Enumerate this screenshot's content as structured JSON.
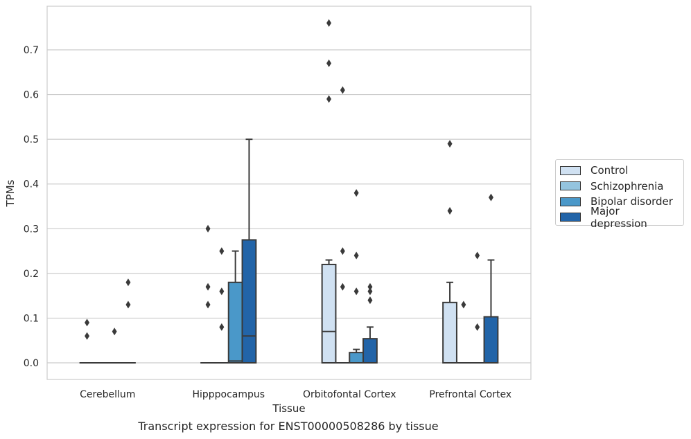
{
  "chart_data": {
    "type": "box",
    "xlabel": "Tissue",
    "ylabel": "TPMs",
    "ylim": [
      -0.037,
      0.8
    ],
    "yticks": [
      "0.0",
      "0.1",
      "0.2",
      "0.3",
      "0.4",
      "0.5",
      "0.6",
      "0.7"
    ],
    "grid": "horizontal",
    "legend_position": "right",
    "categories": [
      "Cerebellum",
      "Hipppocampus",
      "Orbitofontal Cortex",
      "Prefrontal Cortex"
    ],
    "series": [
      {
        "name": "Control",
        "color": "#d0e1f2",
        "boxes": [
          {
            "q1": 0,
            "median": 0,
            "q3": 0,
            "whisker_low": 0,
            "whisker_high": 0,
            "outliers": [
              0.09,
              0.06
            ]
          },
          {
            "q1": 0,
            "median": 0,
            "q3": 0,
            "whisker_low": 0,
            "whisker_high": 0,
            "outliers": [
              0.3,
              0.17,
              0.13
            ]
          },
          {
            "q1": 0,
            "median": 0.07,
            "q3": 0.22,
            "whisker_low": 0,
            "whisker_high": 0.23,
            "outliers": [
              0.76,
              0.67,
              0.59
            ]
          },
          {
            "q1": 0,
            "median": 0,
            "q3": 0.135,
            "whisker_low": 0,
            "whisker_high": 0.18,
            "outliers": [
              0.49,
              0.34
            ]
          }
        ]
      },
      {
        "name": "Schizophrenia",
        "color": "#94c4df",
        "boxes": [
          {
            "q1": 0,
            "median": 0,
            "q3": 0,
            "whisker_low": 0,
            "whisker_high": 0,
            "outliers": []
          },
          {
            "q1": 0,
            "median": 0,
            "q3": 0,
            "whisker_low": 0,
            "whisker_high": 0,
            "outliers": [
              0.25,
              0.16,
              0.08
            ]
          },
          {
            "q1": 0,
            "median": 0,
            "q3": 0,
            "whisker_low": 0,
            "whisker_high": 0,
            "outliers": [
              0.61,
              0.25,
              0.17
            ]
          },
          {
            "q1": 0,
            "median": 0,
            "q3": 0,
            "whisker_low": 0,
            "whisker_high": 0,
            "outliers": [
              0.13
            ]
          }
        ]
      },
      {
        "name": "Bipolar disorder",
        "color": "#4a98c9",
        "boxes": [
          {
            "q1": 0,
            "median": 0,
            "q3": 0,
            "whisker_low": 0,
            "whisker_high": 0,
            "outliers": [
              0.07
            ]
          },
          {
            "q1": 0,
            "median": 0.004,
            "q3": 0.18,
            "whisker_low": 0,
            "whisker_high": 0.25,
            "outliers": []
          },
          {
            "q1": 0,
            "median": 0,
            "q3": 0.023,
            "whisker_low": 0,
            "whisker_high": 0.03,
            "outliers": [
              0.38,
              0.24,
              0.16
            ]
          },
          {
            "q1": 0,
            "median": 0,
            "q3": 0,
            "whisker_low": 0,
            "whisker_high": 0,
            "outliers": [
              0.24,
              0.08
            ]
          }
        ]
      },
      {
        "name": "Major depression",
        "color": "#2264a8",
        "boxes": [
          {
            "q1": 0,
            "median": 0,
            "q3": 0,
            "whisker_low": 0,
            "whisker_high": 0,
            "outliers": [
              0.18,
              0.13
            ]
          },
          {
            "q1": 0,
            "median": 0.06,
            "q3": 0.275,
            "whisker_low": 0,
            "whisker_high": 0.5,
            "outliers": []
          },
          {
            "q1": 0,
            "median": 0,
            "q3": 0.054,
            "whisker_low": 0,
            "whisker_high": 0.08,
            "outliers": [
              0.17,
              0.16,
              0.14
            ]
          },
          {
            "q1": 0,
            "median": 0,
            "q3": 0.103,
            "whisker_low": 0,
            "whisker_high": 0.23,
            "outliers": [
              0.37
            ]
          }
        ]
      }
    ],
    "caption": "Transcript expression for ENST00000508286 by tissue"
  }
}
